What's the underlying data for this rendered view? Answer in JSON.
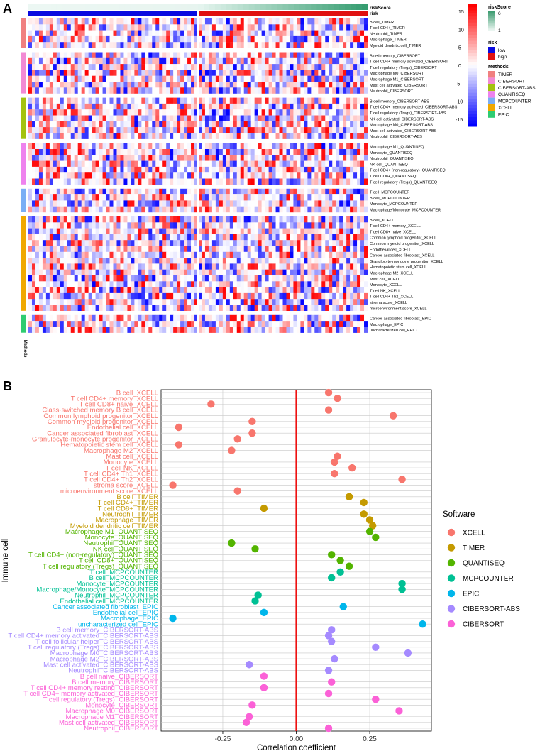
{
  "panel_a": {
    "label": "A",
    "annotation_labels": {
      "risk_score": "riskScore",
      "risk": "risk",
      "methods": "Methods"
    },
    "color_scale": {
      "ticks": [
        15,
        10,
        5,
        0,
        -5,
        -10,
        -15
      ],
      "high_color": "#ff0000",
      "mid_color": "#ffffff",
      "low_color": "#0000ff"
    },
    "legend": {
      "risk_score": {
        "title": "riskScore",
        "ticks": [
          "6",
          "1"
        ],
        "colors": [
          "#3a9a6e",
          "#e9f5f0"
        ]
      },
      "risk": {
        "title": "risk",
        "items": [
          {
            "label": "low",
            "color": "#0a0ae0"
          },
          {
            "label": "high",
            "color": "#e01010"
          }
        ]
      },
      "methods": {
        "title": "Methods",
        "items": [
          {
            "label": "TIMER",
            "color": "#f08080"
          },
          {
            "label": "CIBERSORT",
            "color": "#f28ad4"
          },
          {
            "label": "CIBERSORT-ABS",
            "color": "#a3c20e"
          },
          {
            "label": "QUANTISEQ",
            "color": "#ee82ee"
          },
          {
            "label": "MCPCOUNTER",
            "color": "#7aaef5"
          },
          {
            "label": "XCELL",
            "color": "#f0a800"
          },
          {
            "label": "EPIC",
            "color": "#2ecc71"
          }
        ]
      }
    },
    "groups": [
      {
        "method": "TIMER",
        "color": "#f08080",
        "rows": [
          "B cell_TIMER",
          "T cell CD4+_TIMER",
          "Neutrophil_TIMER",
          "Macrophage_TIMER",
          "Myeloid dendritic cell_TIMER"
        ]
      },
      {
        "method": "CIBERSORT",
        "color": "#f28ad4",
        "rows": [
          "B cell memory_CIBERSORT",
          "T cell CD4+ memory activated_CIBERSORT",
          "T cell regulatory (Tregs)_CIBERSORT",
          "Macrophage M0_CIBERSORT",
          "Macrophage M1_CIBERSORT",
          "Mast cell activated_CIBERSORT",
          "Neutrophil_CIBERSORT"
        ]
      },
      {
        "method": "CIBERSORT-ABS",
        "color": "#a3c20e",
        "rows": [
          "B cell memory_CIBERSORT-ABS",
          "T cell CD4+ memory activated_CIBERSORT-ABS",
          "T cell regulatory (Tregs)_CIBERSORT-ABS",
          "NK cell activated_CIBERSORT-ABS",
          "Macrophage M0_CIBERSORT-ABS",
          "Mast cell activated_CIBERSORT-ABS",
          "Neutrophil_CIBERSORT-ABS"
        ]
      },
      {
        "method": "QUANTISEQ",
        "color": "#ee82ee",
        "rows": [
          "Macrophage M1_QUANTISEQ",
          "Monocyte_QUANTISEQ",
          "Neutrophil_QUANTISEQ",
          "NK cell_QUANTISEQ",
          "T cell CD4+ (non-regulatory)_QUANTISEQ",
          "T cell CD8+_QUANTISEQ",
          "T cell regulatory (Tregs)_QUANTISEQ"
        ]
      },
      {
        "method": "MCPCOUNTER",
        "color": "#7aaef5",
        "rows": [
          "T cell_MCPCOUNTER",
          "B cell_MCPCOUNTER",
          "Monocyte_MCPCOUNTER",
          "Macrophage/Monocyte_MCPCOUNTER"
        ]
      },
      {
        "method": "XCELL",
        "color": "#f0a800",
        "rows": [
          "B cell_XCELL",
          "T cell CD4+ memory_XCELL",
          "T cell CD8+ naive_XCELL",
          "Common lymphoid progenitor_XCELL",
          "Common myeloid progenitor_XCELL",
          "Endothelial cell_XCELL",
          "Cancer associated fibroblast_XCELL",
          "Granulocyte-monocyte progenitor_XCELL",
          "Hematopoietic stem cell_XCELL",
          "Macrophage M2_XCELL",
          "Mast cell_XCELL",
          "Monocyte_XCELL",
          "T cell NK_XCELL",
          "T cell CD4+ Th2_XCELL",
          "stroma score_XCELL",
          "microenvironment score_XCELL"
        ]
      },
      {
        "method": "EPIC",
        "color": "#2ecc71",
        "rows": [
          "Cancer associated fibroblast_EPIC",
          "Macrophage_EPIC",
          "uncharacterized cell_EPIC"
        ]
      }
    ]
  },
  "chart_data": {
    "type": "scatter",
    "panel_label": "B",
    "xlabel": "Correlation coefficient",
    "ylabel": "Immune cell",
    "xlim": [
      -0.46,
      0.46
    ],
    "xticks": [
      -0.25,
      0.0,
      0.25
    ],
    "xtick_labels": [
      "-0.25",
      "0.00",
      "0.25"
    ],
    "reference_line": 0,
    "reference_line_color": "#ee1111",
    "grid": true,
    "legend_title": "Software",
    "legend_position": "right",
    "software_colors": {
      "XCELL": "#f8766d",
      "TIMER": "#c49a00",
      "QUANTISEQ": "#53b400",
      "MCPCOUNTER": "#00c094",
      "EPIC": "#00b6eb",
      "CIBERSORT-ABS": "#a58aff",
      "CIBERSORT": "#fb61d7"
    },
    "legend_order": [
      "XCELL",
      "TIMER",
      "QUANTISEQ",
      "MCPCOUNTER",
      "EPIC",
      "CIBERSORT-ABS",
      "CIBERSORT"
    ],
    "points": [
      {
        "cell": "B cell_XCELL",
        "software": "XCELL",
        "r": 0.11
      },
      {
        "cell": "T cell CD4+ memory_XCELL",
        "software": "XCELL",
        "r": 0.14
      },
      {
        "cell": "T cell CD8+ naive_XCELL",
        "software": "XCELL",
        "r": -0.29
      },
      {
        "cell": "Class-switched memory B cell_XCELL",
        "software": "XCELL",
        "r": 0.11
      },
      {
        "cell": "Common lymphoid progenitor_XCELL",
        "software": "XCELL",
        "r": 0.33
      },
      {
        "cell": "Common myeloid progenitor_XCELL",
        "software": "XCELL",
        "r": -0.15
      },
      {
        "cell": "Endothelial cell_XCELL",
        "software": "XCELL",
        "r": -0.4
      },
      {
        "cell": "Cancer associated fibroblast_XCELL",
        "software": "XCELL",
        "r": -0.15
      },
      {
        "cell": "Granulocyte-monocyte progenitor_XCELL",
        "software": "XCELL",
        "r": -0.2
      },
      {
        "cell": "Hematopoietic stem cell_XCELL",
        "software": "XCELL",
        "r": -0.4
      },
      {
        "cell": "Macrophage M2_XCELL",
        "software": "XCELL",
        "r": -0.22
      },
      {
        "cell": "Mast cell_XCELL",
        "software": "XCELL",
        "r": 0.14
      },
      {
        "cell": "Monocyte_XCELL",
        "software": "XCELL",
        "r": 0.13
      },
      {
        "cell": "T cell NK_XCELL",
        "software": "XCELL",
        "r": 0.19
      },
      {
        "cell": "T cell CD4+ Th1_XCELL",
        "software": "XCELL",
        "r": 0.13
      },
      {
        "cell": "T cell CD4+ Th2_XCELL",
        "software": "XCELL",
        "r": 0.36
      },
      {
        "cell": "stroma score_XCELL",
        "software": "XCELL",
        "r": -0.42
      },
      {
        "cell": "microenvironment score_XCELL",
        "software": "XCELL",
        "r": -0.2
      },
      {
        "cell": "B cell_TIMER",
        "software": "TIMER",
        "r": 0.18
      },
      {
        "cell": "T cell CD4+_TIMER",
        "software": "TIMER",
        "r": 0.23
      },
      {
        "cell": "T cell CD8+_TIMER",
        "software": "TIMER",
        "r": -0.11
      },
      {
        "cell": "Neutrophil_TIMER",
        "software": "TIMER",
        "r": 0.23
      },
      {
        "cell": "Macrophage_TIMER",
        "software": "TIMER",
        "r": 0.25
      },
      {
        "cell": "Myeloid dendritic cell_TIMER",
        "software": "TIMER",
        "r": 0.26
      },
      {
        "cell": "Macrophage M1_QUANTISEQ",
        "software": "QUANTISEQ",
        "r": 0.25
      },
      {
        "cell": "Monocyte_QUANTISEQ",
        "software": "QUANTISEQ",
        "r": 0.27
      },
      {
        "cell": "Neutrophil_QUANTISEQ",
        "software": "QUANTISEQ",
        "r": -0.22
      },
      {
        "cell": "NK cell_QUANTISEQ",
        "software": "QUANTISEQ",
        "r": -0.14
      },
      {
        "cell": "T cell CD4+ (non-regulatory)_QUANTISEQ",
        "software": "QUANTISEQ",
        "r": 0.12
      },
      {
        "cell": "T cell CD8+_QUANTISEQ",
        "software": "QUANTISEQ",
        "r": 0.15
      },
      {
        "cell": "T cell regulatory (Tregs)_QUANTISEQ",
        "software": "QUANTISEQ",
        "r": 0.18
      },
      {
        "cell": "T cell_MCPCOUNTER",
        "software": "MCPCOUNTER",
        "r": 0.15
      },
      {
        "cell": "B cell_MCPCOUNTER",
        "software": "MCPCOUNTER",
        "r": 0.12
      },
      {
        "cell": "Monocyte_MCPCOUNTER",
        "software": "MCPCOUNTER",
        "r": 0.36
      },
      {
        "cell": "Macrophage/Monocyte_MCPCOUNTER",
        "software": "MCPCOUNTER",
        "r": 0.36
      },
      {
        "cell": "Neutrophil_MCPCOUNTER",
        "software": "MCPCOUNTER",
        "r": -0.13
      },
      {
        "cell": "Endothelial cell_MCPCOUNTER",
        "software": "MCPCOUNTER",
        "r": -0.14
      },
      {
        "cell": "Cancer associated fibroblast_EPIC",
        "software": "EPIC",
        "r": 0.16
      },
      {
        "cell": "Endothelial cell_EPIC",
        "software": "EPIC",
        "r": -0.11
      },
      {
        "cell": "Macrophage_EPIC",
        "software": "EPIC",
        "r": -0.42
      },
      {
        "cell": "uncharacterized cell_EPIC",
        "software": "EPIC",
        "r": 0.43
      },
      {
        "cell": "B cell memory_CIBERSORT-ABS",
        "software": "CIBERSORT-ABS",
        "r": 0.12
      },
      {
        "cell": "T cell CD4+ memory activated_CIBERSORT-ABS",
        "software": "CIBERSORT-ABS",
        "r": 0.11
      },
      {
        "cell": "T cell follicular helper_CIBERSORT-ABS",
        "software": "CIBERSORT-ABS",
        "r": 0.12
      },
      {
        "cell": "T cell regulatory (Tregs)_CIBERSORT-ABS",
        "software": "CIBERSORT-ABS",
        "r": 0.27
      },
      {
        "cell": "Macrophage M0_CIBERSORT-ABS",
        "software": "CIBERSORT-ABS",
        "r": 0.38
      },
      {
        "cell": "Macrophage M2_CIBERSORT-ABS",
        "software": "CIBERSORT-ABS",
        "r": 0.13
      },
      {
        "cell": "Mast cell activated_CIBERSORT-ABS",
        "software": "CIBERSORT-ABS",
        "r": -0.16
      },
      {
        "cell": "Neutrophil_CIBERSORT-ABS",
        "software": "CIBERSORT-ABS",
        "r": 0.11
      },
      {
        "cell": "B cell naive_CIBERSORT",
        "software": "CIBERSORT",
        "r": -0.11
      },
      {
        "cell": "B cell memory_CIBERSORT",
        "software": "CIBERSORT",
        "r": 0.12
      },
      {
        "cell": "T cell CD4+ memory resting_CIBERSORT",
        "software": "CIBERSORT",
        "r": -0.11
      },
      {
        "cell": "T cell CD4+ memory activated_CIBERSORT",
        "software": "CIBERSORT",
        "r": 0.11
      },
      {
        "cell": "T cell regulatory (Tregs)_CIBERSORT",
        "software": "CIBERSORT",
        "r": 0.27
      },
      {
        "cell": "Monocyte_CIBERSORT",
        "software": "CIBERSORT",
        "r": -0.15
      },
      {
        "cell": "Macrophage M0_CIBERSORT",
        "software": "CIBERSORT",
        "r": 0.35
      },
      {
        "cell": "Macrophage M1_CIBERSORT",
        "software": "CIBERSORT",
        "r": -0.16
      },
      {
        "cell": "Mast cell activated_CIBERSORT",
        "software": "CIBERSORT",
        "r": -0.17
      },
      {
        "cell": "Neutrophil_CIBERSORT",
        "software": "CIBERSORT",
        "r": 0.11
      }
    ]
  }
}
